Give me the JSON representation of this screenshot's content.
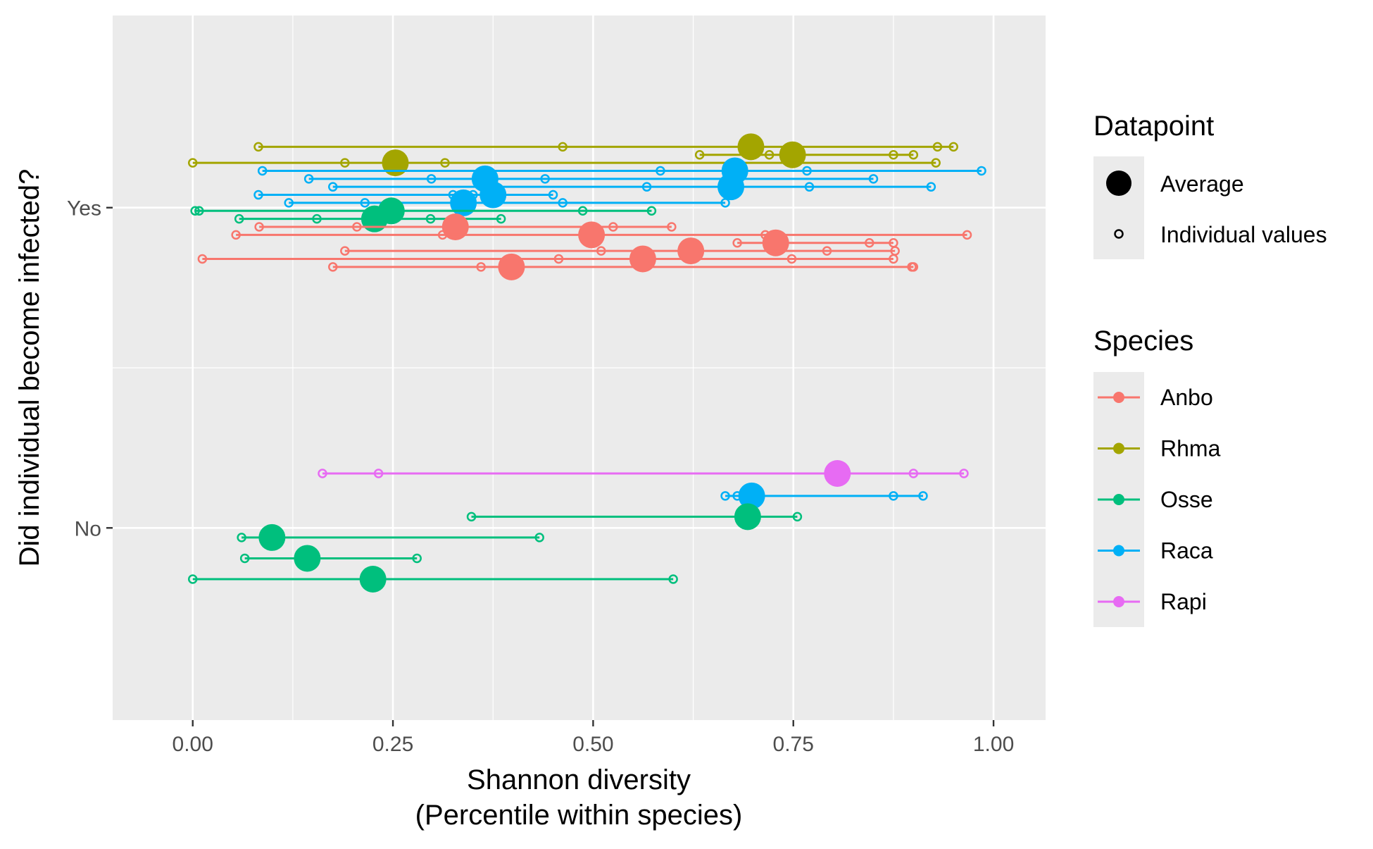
{
  "chart_data": {
    "type": "scatter",
    "xlabel_line1": "Shannon diversity",
    "xlabel_line2": "(Percentile within species)",
    "ylabel": "Did individual become infected?",
    "xlim": [
      -0.1,
      1.065
    ],
    "x_ticks": [
      "0.00",
      "0.25",
      "0.50",
      "0.75",
      "1.00"
    ],
    "y_categories": [
      "Yes",
      "No"
    ],
    "grid": true,
    "panel_background": "#ebebeb",
    "legend_position": "right",
    "legend_datapoint": {
      "title": "Datapoint",
      "items": [
        "Average",
        "Individual values"
      ]
    },
    "legend_species": {
      "title": "Species",
      "items": [
        {
          "name": "Anbo",
          "color": "#F8766D"
        },
        {
          "name": "Rhma",
          "color": "#A3A500"
        },
        {
          "name": "Osse",
          "color": "#00BF7D"
        },
        {
          "name": "Raca",
          "color": "#00B0F6"
        },
        {
          "name": "Rapi",
          "color": "#E76BF3"
        }
      ]
    },
    "rows": [
      {
        "species": "Rhma",
        "group": "Yes",
        "offset": 0.19,
        "average": 0.697,
        "values": [
          0.082,
          0.462,
          0.93,
          0.95
        ]
      },
      {
        "species": "Rhma",
        "group": "Yes",
        "offset": 0.165,
        "average": 0.749,
        "values": [
          0.633,
          0.72,
          0.875,
          0.9
        ]
      },
      {
        "species": "Rhma",
        "group": "Yes",
        "offset": 0.14,
        "average": 0.253,
        "values": [
          0.0,
          0.19,
          0.315,
          0.928
        ]
      },
      {
        "species": "Raca",
        "group": "Yes",
        "offset": 0.115,
        "average": 0.677,
        "values": [
          0.087,
          0.584,
          0.767,
          0.985
        ]
      },
      {
        "species": "Raca",
        "group": "Yes",
        "offset": 0.09,
        "average": 0.365,
        "values": [
          0.145,
          0.298,
          0.44,
          0.85
        ]
      },
      {
        "species": "Raca",
        "group": "Yes",
        "offset": 0.065,
        "average": 0.672,
        "values": [
          0.175,
          0.567,
          0.77,
          0.922
        ]
      },
      {
        "species": "Raca",
        "group": "Yes",
        "offset": 0.04,
        "average": 0.375,
        "values": [
          0.082,
          0.325,
          0.35,
          0.45
        ]
      },
      {
        "species": "Raca",
        "group": "Yes",
        "offset": 0.015,
        "average": 0.338,
        "values": [
          0.12,
          0.215,
          0.462,
          0.665
        ]
      },
      {
        "species": "Osse",
        "group": "Yes",
        "offset": -0.01,
        "average": 0.248,
        "values": [
          0.003,
          0.008,
          0.487,
          0.573
        ]
      },
      {
        "species": "Osse",
        "group": "Yes",
        "offset": -0.035,
        "average": 0.227,
        "values": [
          0.058,
          0.155,
          0.297,
          0.385
        ]
      },
      {
        "species": "Anbo",
        "group": "Yes",
        "offset": -0.06,
        "average": 0.328,
        "values": [
          0.083,
          0.205,
          0.525,
          0.598
        ]
      },
      {
        "species": "Anbo",
        "group": "Yes",
        "offset": -0.085,
        "average": 0.498,
        "values": [
          0.054,
          0.312,
          0.715,
          0.967
        ]
      },
      {
        "species": "Anbo",
        "group": "Yes",
        "offset": -0.11,
        "average": 0.728,
        "values": [
          0.68,
          0.72,
          0.845,
          0.875
        ]
      },
      {
        "species": "Anbo",
        "group": "Yes",
        "offset": -0.135,
        "average": 0.622,
        "values": [
          0.19,
          0.51,
          0.792,
          0.877
        ]
      },
      {
        "species": "Anbo",
        "group": "Yes",
        "offset": -0.16,
        "average": 0.562,
        "values": [
          0.012,
          0.457,
          0.748,
          0.875
        ]
      },
      {
        "species": "Anbo",
        "group": "Yes",
        "offset": -0.185,
        "average": 0.398,
        "values": [
          0.175,
          0.36,
          0.898,
          0.9
        ]
      },
      {
        "species": "Rapi",
        "group": "No",
        "offset": 0.17,
        "average": 0.805,
        "values": [
          0.162,
          0.232,
          0.9,
          0.963
        ]
      },
      {
        "species": "Raca",
        "group": "No",
        "offset": 0.1,
        "average": 0.698,
        "values": [
          0.665,
          0.68,
          0.875,
          0.912
        ]
      },
      {
        "species": "Osse",
        "group": "No",
        "offset": 0.035,
        "average": 0.693,
        "values": [
          0.348,
          0.755
        ]
      },
      {
        "species": "Osse",
        "group": "No",
        "offset": -0.03,
        "average": 0.099,
        "values": [
          0.061,
          0.433
        ]
      },
      {
        "species": "Osse",
        "group": "No",
        "offset": -0.095,
        "average": 0.143,
        "values": [
          0.065,
          0.28
        ]
      },
      {
        "species": "Osse",
        "group": "No",
        "offset": -0.16,
        "average": 0.225,
        "values": [
          0.0,
          0.6
        ]
      }
    ]
  }
}
